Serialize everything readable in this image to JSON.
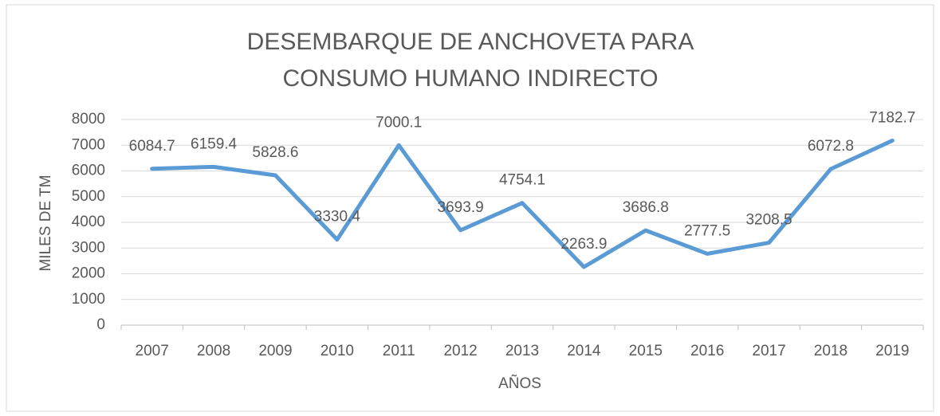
{
  "chart_data": {
    "type": "line",
    "title": "DESEMBARQUE DE ANCHOVETA PARA CONSUMO HUMANO INDIRECTO",
    "x_label": "AÑOS",
    "y_label": "MILES DE TM",
    "categories": [
      "2007",
      "2008",
      "2009",
      "2010",
      "2011",
      "2012",
      "2013",
      "2014",
      "2015",
      "2016",
      "2017",
      "2018",
      "2019"
    ],
    "values": [
      6084.7,
      6159.4,
      5828.6,
      3330.4,
      7000.1,
      3693.9,
      4754.1,
      2263.9,
      3686.8,
      2777.5,
      3208.5,
      6072.8,
      7182.7
    ],
    "color": "#5b9bd5",
    "ylim": [
      0,
      8000
    ],
    "yticks": [
      0,
      1000,
      2000,
      3000,
      4000,
      5000,
      6000,
      7000,
      8000
    ],
    "grid": true
  }
}
